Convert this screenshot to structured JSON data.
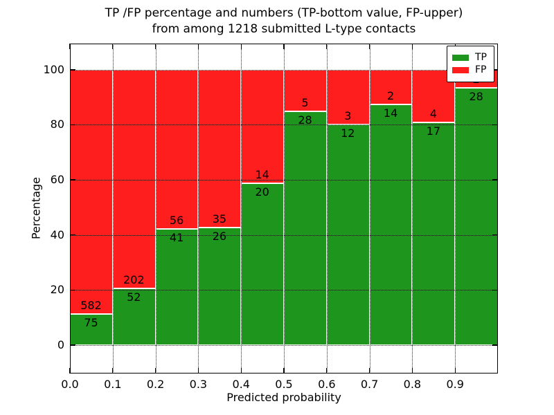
{
  "title": {
    "line1": "TP /FP percentage and numbers (TP-bottom value, FP-upper)",
    "line2": "from among 1218 submitted L-type contacts"
  },
  "chart_data": {
    "type": "bar",
    "stacked": true,
    "title": "TP /FP percentage and numbers (TP-bottom value, FP-upper) from among 1218 submitted L-type contacts",
    "xlabel": "Predicted probability",
    "ylabel": "Percentage",
    "x_bin_starts": [
      0.0,
      0.1,
      0.2,
      0.3,
      0.4,
      0.5,
      0.6,
      0.7,
      0.8,
      0.9
    ],
    "x_bin_width": 0.1,
    "x_tick_labels": [
      "0.0",
      "0.1",
      "0.2",
      "0.3",
      "0.4",
      "0.5",
      "0.6",
      "0.7",
      "0.8",
      "0.9"
    ],
    "y_ticks": [
      0,
      20,
      40,
      60,
      80,
      100
    ],
    "xlim": [
      0,
      1
    ],
    "ylim": [
      -10.3,
      109.5
    ],
    "grid": true,
    "legend_position": "upper right",
    "series": [
      {
        "name": "TP",
        "color": "#1e961e",
        "counts": [
          75,
          52,
          41,
          26,
          20,
          28,
          12,
          14,
          17,
          28
        ]
      },
      {
        "name": "FP",
        "color": "#ff1e1e",
        "counts": [
          582,
          202,
          56,
          35,
          14,
          5,
          3,
          2,
          4,
          2
        ]
      }
    ],
    "tp_percent_of_bin": [
      11.4,
      20.5,
      42.3,
      42.6,
      58.8,
      84.8,
      80.0,
      87.5,
      81.0,
      93.3
    ],
    "units": "percent, bars stack to 100"
  },
  "legend": {
    "items": [
      {
        "label": "TP",
        "color": "#1e961e"
      },
      {
        "label": "FP",
        "color": "#ff1e1e"
      }
    ]
  }
}
